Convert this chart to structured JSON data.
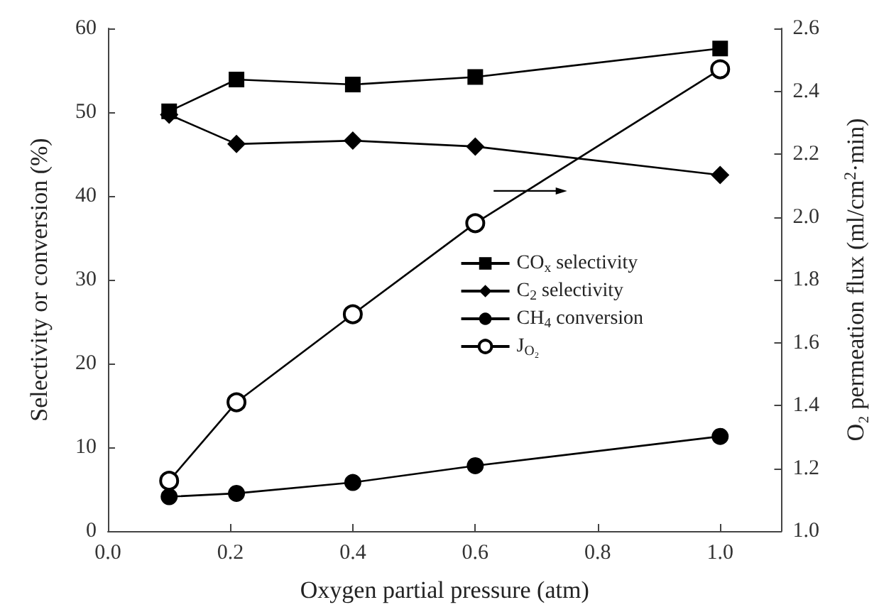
{
  "chart_data": {
    "type": "line",
    "xlabel": "Oxygen partial pressure (atm)",
    "ylabel": "Selectivity or conversion (%)",
    "y2label": "O₂ permeation flux (ml/cm$^{2}$·min)",
    "x": [
      0.1,
      0.21,
      0.4,
      0.6,
      1.0
    ],
    "series": [
      {
        "name": "CO$_{x}$ selectivity",
        "color": "#000000",
        "marker": "square",
        "values": [
          50.1,
          53.9,
          53.3,
          54.2,
          57.6
        ]
      },
      {
        "name": "C$_{2}$ selectivity",
        "color": "#000000",
        "marker": "diamond",
        "values": [
          49.7,
          46.2,
          46.6,
          45.9,
          42.5
        ]
      },
      {
        "name": "CH$_{4}$ conversion",
        "color": "#000000",
        "marker": "circle",
        "values": [
          4.1,
          4.5,
          5.8,
          7.8,
          11.3
        ]
      },
      {
        "name": "J$_{O₂}$",
        "color": "#000000",
        "marker": "circle-open",
        "axis": "y2",
        "values": [
          1.16,
          1.41,
          1.69,
          1.98,
          2.47
        ]
      }
    ],
    "xlim": [
      0,
      1.1
    ],
    "xticks": [
      {
        "value": 0,
        "label": "0.0"
      },
      {
        "value": 0.2,
        "label": "0.2"
      },
      {
        "value": 0.4,
        "label": "0.4"
      },
      {
        "value": 0.6,
        "label": "0.6"
      },
      {
        "value": 0.8,
        "label": "0.8"
      },
      {
        "value": 1.0,
        "label": "1.0"
      }
    ],
    "ylim": [
      0,
      60
    ],
    "yticks": [
      0,
      10,
      20,
      30,
      40,
      50,
      60
    ],
    "y2lim": [
      1.0,
      2.6
    ],
    "y2ticks": [
      {
        "value": 1.0,
        "label": "1.0"
      },
      {
        "value": 1.2,
        "label": "1.2"
      },
      {
        "value": 1.4,
        "label": "1.4"
      },
      {
        "value": 1.6,
        "label": "1.6"
      },
      {
        "value": 1.8,
        "label": "1.8"
      },
      {
        "value": 2.0,
        "label": "2.0"
      },
      {
        "value": 2.2,
        "label": "2.2"
      },
      {
        "value": 2.4,
        "label": "2.4"
      },
      {
        "value": 2.6,
        "label": "2.6"
      }
    ],
    "legend": "right",
    "line_style": "solid",
    "grid": false
  }
}
